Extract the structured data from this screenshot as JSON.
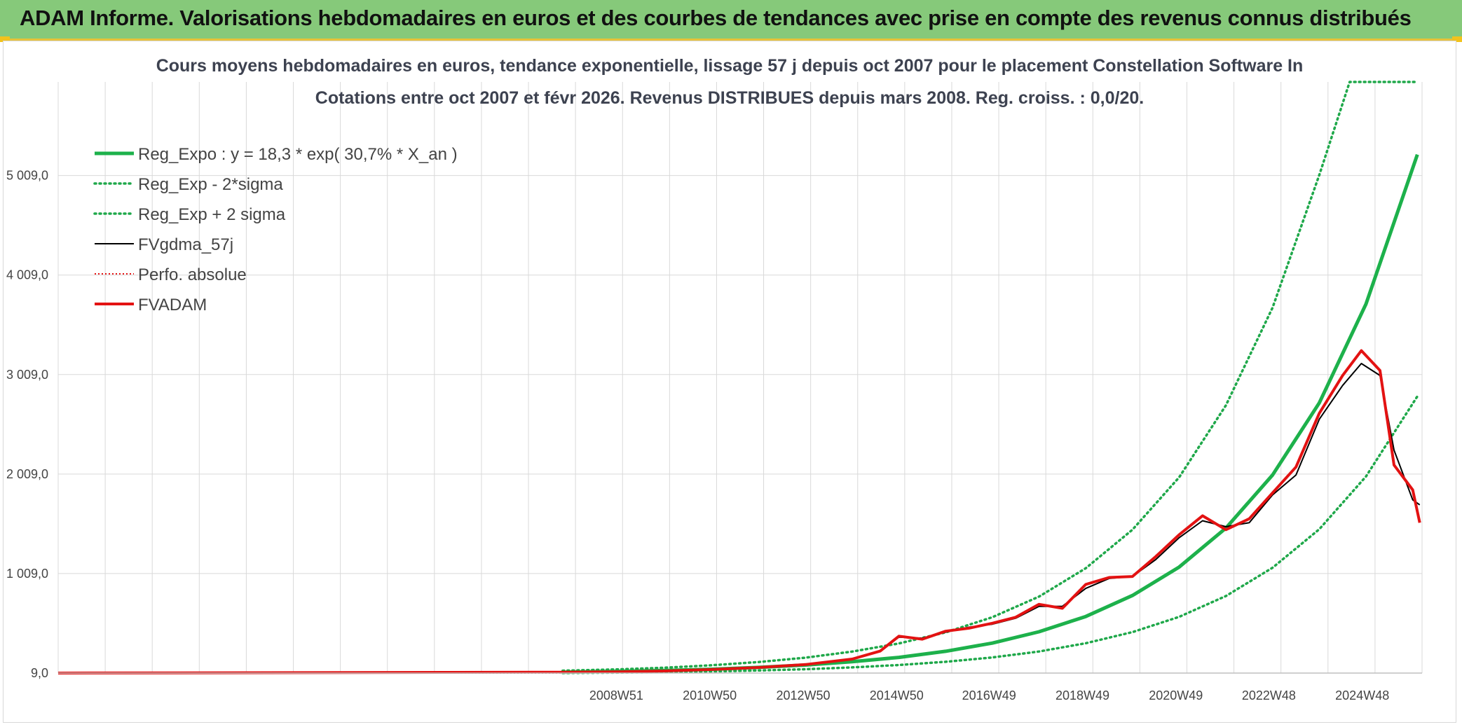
{
  "header": {
    "title": "ADAM Informe. Valorisations hebdomadaires en euros et des courbes de tendances avec prise en compte des revenus connus distribués"
  },
  "colors": {
    "banner": "#86c97a",
    "green": "#1db14b",
    "green_dotted": "#1fa84a",
    "black": "#000000",
    "red": "#e31212",
    "grid": "#d9d9d9"
  },
  "chart_data": {
    "type": "line",
    "title": "Cours moyens hebdomadaires en euros, tendance exponentielle, lissage 57 j depuis oct 2007 pour le placement Constellation Software In",
    "subtitle": "Cotations entre oct 2007 et févr 2026. Revenus DISTRIBUES depuis mars 2008. Reg. croiss. : 0,0/20.",
    "xlabel": "",
    "ylabel": "",
    "x_range": [
      1997.0,
      2026.2
    ],
    "ylim": [
      9,
      5950
    ],
    "y_ticks": [
      {
        "value": 9,
        "label": "9,0"
      },
      {
        "value": 1009,
        "label": "1 009,0"
      },
      {
        "value": 2009,
        "label": "2 009,0"
      },
      {
        "value": 3009,
        "label": "3 009,0"
      },
      {
        "value": 4009,
        "label": "4 009,0"
      },
      {
        "value": 5009,
        "label": "5 009,0"
      }
    ],
    "x_ticks": [
      {
        "value": 2008.95,
        "label": "2008W51"
      },
      {
        "value": 2010.95,
        "label": "2010W50"
      },
      {
        "value": 2012.95,
        "label": "2012W50"
      },
      {
        "value": 2014.95,
        "label": "2014W50"
      },
      {
        "value": 2016.93,
        "label": "2016W49"
      },
      {
        "value": 2018.93,
        "label": "2018W49"
      },
      {
        "value": 2020.93,
        "label": "2020W49"
      },
      {
        "value": 2022.92,
        "label": "2022W48"
      },
      {
        "value": 2024.92,
        "label": "2024W48"
      }
    ],
    "grid": true,
    "legend_position": "top-left",
    "legend": [
      {
        "name": "Reg_Expo : y = 18,3 * exp( 30,7% *  X_an )",
        "style": "solid-thick",
        "color": "#1db14b"
      },
      {
        "name": "Reg_Exp - 2*sigma",
        "style": "dotted",
        "color": "#1fa84a"
      },
      {
        "name": "Reg_Exp + 2 sigma",
        "style": "dotted",
        "color": "#1fa84a"
      },
      {
        "name": "FVgdma_57j",
        "style": "solid",
        "color": "#000000"
      },
      {
        "name": "Perfo. absolue",
        "style": "dotted-thin",
        "color": "#e31212"
      },
      {
        "name": "FVADAM",
        "style": "solid-thick",
        "color": "#e31212"
      }
    ],
    "series": [
      {
        "name": "Reg_Expo",
        "x": [
          2007.8,
          2009,
          2010,
          2011,
          2012,
          2013,
          2014,
          2015,
          2016,
          2017,
          2018,
          2019,
          2020,
          2021,
          2022,
          2023,
          2024,
          2025,
          2026.1
        ],
        "values": [
          18,
          26,
          36,
          48,
          66,
          90,
          123,
          167,
          228,
          310,
          424,
          578,
          789,
          1075,
          1466,
          2000,
          2725,
          3718,
          5220
        ]
      },
      {
        "name": "Reg_Exp - 2*sigma",
        "x": [
          2007.8,
          2009,
          2010,
          2011,
          2012,
          2013,
          2014,
          2015,
          2016,
          2017,
          2018,
          2019,
          2020,
          2021,
          2022,
          2023,
          2024,
          2025,
          2026.1
        ],
        "values": [
          10,
          14,
          19,
          26,
          35,
          48,
          66,
          90,
          122,
          166,
          226,
          309,
          421,
          574,
          783,
          1068,
          1455,
          1985,
          2790
        ]
      },
      {
        "name": "Reg_Exp + 2 sigma",
        "x": [
          2007.8,
          2009,
          2010,
          2011,
          2012,
          2013,
          2014,
          2015,
          2016,
          2017,
          2018,
          2019,
          2020,
          2021,
          2022,
          2023,
          2024,
          2024.65,
          2026.1
        ],
        "values": [
          33,
          46,
          63,
          88,
          120,
          164,
          225,
          307,
          418,
          571,
          778,
          1063,
          1450,
          1977,
          2699,
          3681,
          5015,
          5950,
          5950
        ]
      },
      {
        "name": "FVgdma_57j",
        "x": [
          2007.8,
          2009,
          2010,
          2011,
          2012,
          2013,
          2014,
          2014.6,
          2015,
          2015.5,
          2016,
          2016.5,
          2017,
          2017.5,
          2018,
          2018.5,
          2019,
          2019.5,
          2020,
          2020.5,
          2021,
          2021.5,
          2022,
          2022.5,
          2023,
          2023.5,
          2024,
          2024.5,
          2024.9,
          2025.3,
          2025.6,
          2026.0,
          2026.15
        ],
        "values": [
          18,
          22,
          30,
          45,
          65,
          95,
          150,
          230,
          370,
          360,
          420,
          470,
          500,
          560,
          680,
          680,
          860,
          960,
          980,
          1150,
          1370,
          1540,
          1480,
          1520,
          1800,
          2000,
          2560,
          2900,
          3120,
          3000,
          2250,
          1750,
          1700
        ]
      },
      {
        "name": "Perfo. absolue",
        "x": [
          1997.0,
          2007.8
        ],
        "values": [
          9,
          9
        ]
      },
      {
        "name": "FVADAM",
        "x": [
          1997.0,
          2007.8,
          2009,
          2010,
          2011,
          2012,
          2013,
          2014,
          2014.6,
          2015,
          2015.5,
          2016,
          2016.5,
          2017,
          2017.5,
          2018,
          2018.5,
          2019,
          2019.5,
          2020,
          2020.5,
          2021,
          2021.5,
          2022,
          2022.5,
          2023,
          2023.5,
          2024,
          2024.5,
          2024.9,
          2025.3,
          2025.6,
          2026.0,
          2026.15
        ],
        "values": [
          9,
          18,
          22,
          30,
          45,
          65,
          95,
          150,
          230,
          380,
          350,
          430,
          460,
          510,
          570,
          700,
          660,
          900,
          970,
          980,
          1180,
          1400,
          1590,
          1450,
          1560,
          1820,
          2080,
          2620,
          3000,
          3250,
          3050,
          2100,
          1850,
          1520
        ]
      }
    ]
  }
}
